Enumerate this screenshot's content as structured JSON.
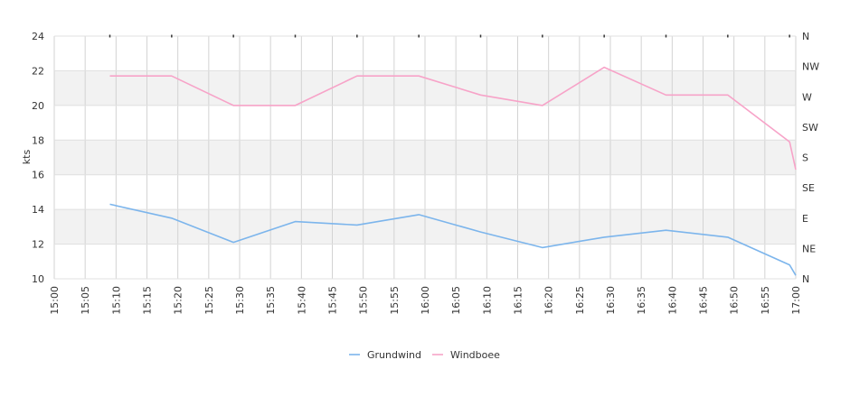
{
  "chart_data": {
    "type": "line",
    "xlabel": "",
    "ylabel": "kts",
    "ylim": [
      10,
      24
    ],
    "y_ticks": [
      10,
      12,
      14,
      16,
      18,
      20,
      22,
      24
    ],
    "y2_ticks": [
      "N",
      "NE",
      "E",
      "SE",
      "S",
      "SW",
      "W",
      "NW",
      "N"
    ],
    "x_ticks": [
      "15:00",
      "15:05",
      "15:10",
      "15:15",
      "15:20",
      "15:25",
      "15:30",
      "15:35",
      "15:40",
      "15:45",
      "15:50",
      "15:55",
      "16:00",
      "16:05",
      "16:10",
      "16:15",
      "16:20",
      "16:25",
      "16:30",
      "16:35",
      "16:40",
      "16:45",
      "16:50",
      "16:55",
      "17:00"
    ],
    "x_range": [
      "15:00",
      "17:00"
    ],
    "grid": true,
    "legend_position": "bottom-center",
    "series": [
      {
        "name": "Grundwind",
        "color": "#7cb5ec",
        "x": [
          "15:09",
          "15:19",
          "15:29",
          "15:39",
          "15:49",
          "15:59",
          "16:09",
          "16:19",
          "16:29",
          "16:39",
          "16:49",
          "16:59",
          "17:00"
        ],
        "values": [
          14.3,
          13.5,
          12.1,
          13.3,
          13.1,
          13.7,
          12.7,
          11.8,
          12.4,
          12.8,
          12.4,
          10.8,
          10.2
        ]
      },
      {
        "name": "Windboee",
        "color": "#f7a3c8",
        "x": [
          "15:09",
          "15:19",
          "15:29",
          "15:39",
          "15:49",
          "15:59",
          "16:09",
          "16:19",
          "16:29",
          "16:39",
          "16:49",
          "16:59",
          "17:00"
        ],
        "values": [
          21.7,
          21.7,
          20.0,
          20.0,
          21.7,
          21.7,
          20.6,
          20.0,
          22.2,
          20.6,
          20.6,
          17.9,
          16.3
        ]
      }
    ]
  }
}
